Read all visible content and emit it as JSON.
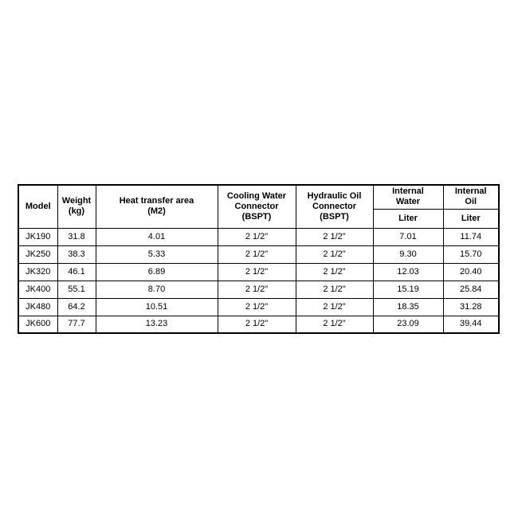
{
  "page": {
    "background_color": "#ffffff",
    "text_color": "#000000",
    "border_color": "#000000"
  },
  "table": {
    "header": {
      "columns": [
        {
          "label": "Model"
        },
        {
          "label": "Weight\n(kg)"
        },
        {
          "label": "Heat transfer area\n(M2)"
        },
        {
          "label": "Cooling Water\nConnector\n(BSPT)"
        },
        {
          "label": "Hydraulic Oil\nConnector\n(BSPT)"
        },
        {
          "label": "Internal\nWater",
          "sub": "Liter"
        },
        {
          "label": "Internal\nOil",
          "sub": "Liter"
        }
      ]
    },
    "rows": [
      [
        "JK190",
        "31.8",
        "4.01",
        "2 1/2\"",
        "2 1/2\"",
        "7.01",
        "11.74"
      ],
      [
        "JK250",
        "38.3",
        "5.33",
        "2 1/2\"",
        "2 1/2\"",
        "9.30",
        "15.70"
      ],
      [
        "JK320",
        "46.1",
        "6.89",
        "2 1/2\"",
        "2 1/2\"",
        "12.03",
        "20.40"
      ],
      [
        "JK400",
        "55.1",
        "8.70",
        "2 1/2\"",
        "2 1/2\"",
        "15.19",
        "25.84"
      ],
      [
        "JK480",
        "64.2",
        "10.51",
        "2 1/2\"",
        "2 1/2\"",
        "18.35",
        "31.28"
      ],
      [
        "JK600",
        "77.7",
        "13.23",
        "2 1/2\"",
        "2 1/2\"",
        "23.09",
        "39.44"
      ]
    ]
  }
}
